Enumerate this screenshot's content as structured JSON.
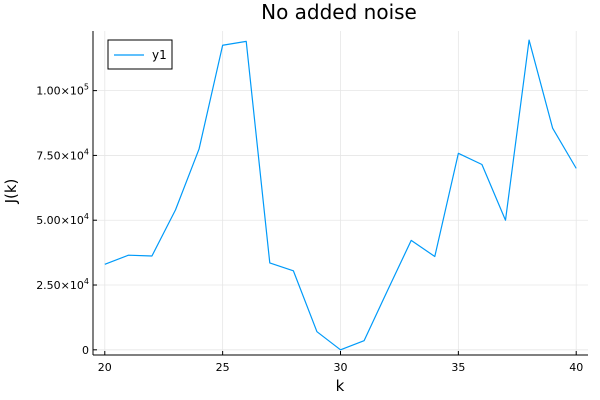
{
  "chart_data": {
    "type": "line",
    "title": "No added noise",
    "xlabel": "k",
    "ylabel": "J(k)",
    "xlim": [
      19.5,
      40.5
    ],
    "ylim": [
      -2000,
      123000
    ],
    "grid": true,
    "legend_position": "top-left",
    "x_ticks": [
      20,
      25,
      30,
      35,
      40
    ],
    "x_tick_labels": [
      "20",
      "25",
      "30",
      "35",
      "40"
    ],
    "y_ticks": [
      {
        "value": 0,
        "mantissa": "0",
        "exponent": ""
      },
      {
        "value": 25000,
        "mantissa": "2.50×10",
        "exponent": "4"
      },
      {
        "value": 50000,
        "mantissa": "5.00×10",
        "exponent": "4"
      },
      {
        "value": 75000,
        "mantissa": "7.50×10",
        "exponent": "4"
      },
      {
        "value": 100000,
        "mantissa": "1.00×10",
        "exponent": "5"
      }
    ],
    "series": [
      {
        "name": "y1",
        "color": "#009af9",
        "x": [
          20,
          21,
          22,
          23,
          24,
          25,
          26,
          27,
          28,
          29,
          30,
          31,
          32,
          33,
          34,
          35,
          36,
          37,
          38,
          39,
          40
        ],
        "y": [
          33000,
          36500,
          36200,
          54000,
          77500,
          117500,
          119000,
          33500,
          30500,
          7000,
          0,
          3500,
          23000,
          42200,
          36000,
          75800,
          71500,
          50000,
          119500,
          85500,
          70000
        ]
      }
    ]
  }
}
